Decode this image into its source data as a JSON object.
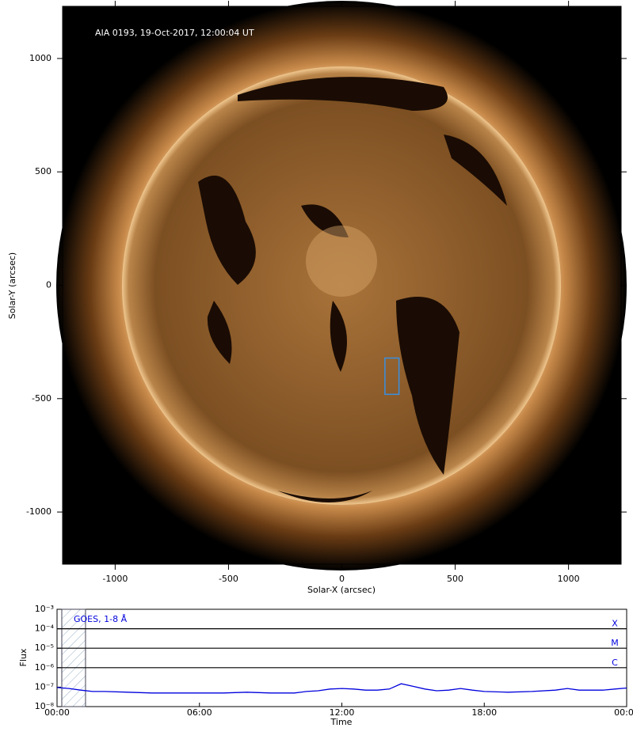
{
  "chart_data": [
    {
      "type": "image",
      "annotation": "AIA 0193, 19-Oct-2017, 12:00:04 UT",
      "xlabel": "Solar-X (arcsec)",
      "ylabel": "Solar-Y (arcsec)",
      "xlim": [
        -1232,
        1232
      ],
      "ylim": [
        -1230,
        1230
      ],
      "xticks": [
        -1000,
        -500,
        0,
        500,
        1000
      ],
      "yticks": [
        -1000,
        -500,
        0,
        500,
        1000
      ],
      "box": {
        "x": [
          190,
          252
        ],
        "y": [
          -481,
          -321
        ],
        "color": "#3a8fe0"
      }
    },
    {
      "type": "line",
      "log_y": true,
      "xlabel": "Time",
      "ylabel": "Flux",
      "xlim": [
        0,
        24
      ],
      "ylim": [
        1e-08,
        0.001
      ],
      "xticks": [
        {
          "value": 0,
          "label": "00:00"
        },
        {
          "value": 6,
          "label": "06:00"
        },
        {
          "value": 12,
          "label": "12:00"
        },
        {
          "value": 18,
          "label": "18:00"
        },
        {
          "value": 24,
          "label": "00:00"
        }
      ],
      "yticks": [
        {
          "value": 1e-08,
          "label": "10⁻⁸"
        },
        {
          "value": 1e-07,
          "label": "10⁻⁷"
        },
        {
          "value": 1e-06,
          "label": "10⁻⁶"
        },
        {
          "value": 1e-05,
          "label": "10⁻⁵"
        },
        {
          "value": 0.0001,
          "label": "10⁻⁴"
        },
        {
          "value": 0.001,
          "label": "10⁻³"
        }
      ],
      "levels": [
        {
          "label": "X",
          "value": 0.0001
        },
        {
          "label": "M",
          "value": 1e-05
        },
        {
          "label": "C",
          "value": 1e-06
        }
      ],
      "shaded": [
        0.2,
        1.2
      ],
      "x": [
        0,
        0.5,
        1,
        1.5,
        2,
        3,
        4,
        5,
        6,
        7,
        8,
        9,
        10,
        10.5,
        11,
        11.5,
        12,
        12.5,
        13,
        13.5,
        14,
        14.5,
        15,
        15.5,
        16,
        16.5,
        17,
        17.5,
        18,
        19,
        20,
        21,
        21.5,
        22,
        23,
        23.5,
        24
      ],
      "series": [
        {
          "name": "GOES, 1-8 Å",
          "color": "#0000dd",
          "values": [
            9.5e-08,
            8.5e-08,
            7e-08,
            6e-08,
            6e-08,
            5.5e-08,
            5e-08,
            5e-08,
            5e-08,
            5e-08,
            5.5e-08,
            5e-08,
            5e-08,
            6e-08,
            6.5e-08,
            8e-08,
            8.5e-08,
            8e-08,
            7e-08,
            7e-08,
            8e-08,
            1.5e-07,
            1.1e-07,
            8e-08,
            6.5e-08,
            7e-08,
            8.5e-08,
            7e-08,
            6e-08,
            5.5e-08,
            6e-08,
            7e-08,
            8.5e-08,
            7e-08,
            7e-08,
            8e-08,
            9e-08
          ]
        }
      ]
    }
  ]
}
